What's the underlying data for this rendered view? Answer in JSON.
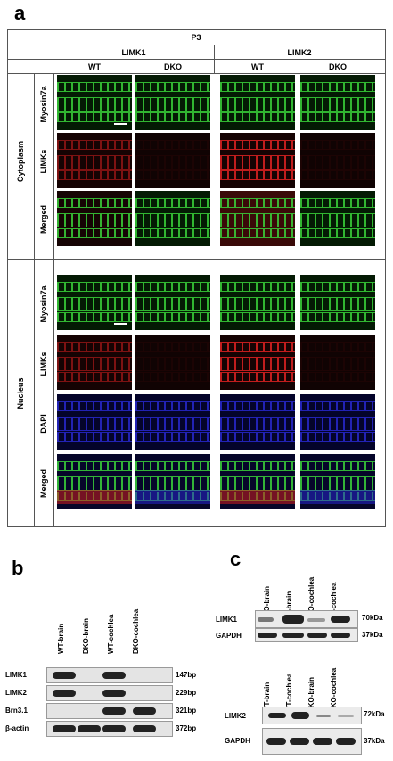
{
  "panel_a": {
    "letter": "a",
    "age": "P3",
    "genes": [
      "LIMK1",
      "LIMK2"
    ],
    "genotypes": [
      "WT",
      "DKO",
      "WT",
      "DKO"
    ],
    "sections": [
      {
        "label": "Cytoplasm",
        "rows": [
          "Myosin7a",
          "LIMKs",
          "Merged"
        ]
      },
      {
        "label": "Nucleus",
        "rows": [
          "Myosin7a",
          "LIMKs",
          "DAPI",
          "Merged"
        ]
      }
    ]
  },
  "panel_b": {
    "letter": "b",
    "lanes": [
      "WT-brain",
      "DKO-brain",
      "WT-cochlea",
      "DKO-cochlea"
    ],
    "rows": [
      {
        "label": "LIMK1",
        "size": "147bp"
      },
      {
        "label": "LIMK2",
        "size": "229bp"
      },
      {
        "label": "Brn3.1",
        "size": "321bp"
      },
      {
        "label": "β-actin",
        "size": "372bp"
      }
    ]
  },
  "panel_c": {
    "letter": "c",
    "top": {
      "lanes": [
        "DKO-brain",
        "WT-brain",
        "DKO-cochlea",
        "WT-cochlea"
      ],
      "rows": [
        {
          "label": "LIMK1",
          "size": "70kDa"
        },
        {
          "label": "GAPDH",
          "size": "37kDa"
        }
      ]
    },
    "bottom": {
      "lanes": [
        "WT-brain",
        "WT-cochlea",
        "DKO-brain",
        "DKO-cochlea"
      ],
      "rows": [
        {
          "label": "LIMK2",
          "size": "72kDa"
        },
        {
          "label": "GAPDH",
          "size": "37kDa"
        }
      ]
    }
  },
  "colors": {
    "green": "#3ad23a",
    "red": "#d42020",
    "blue": "#2a2ad8",
    "band": "#222222"
  }
}
